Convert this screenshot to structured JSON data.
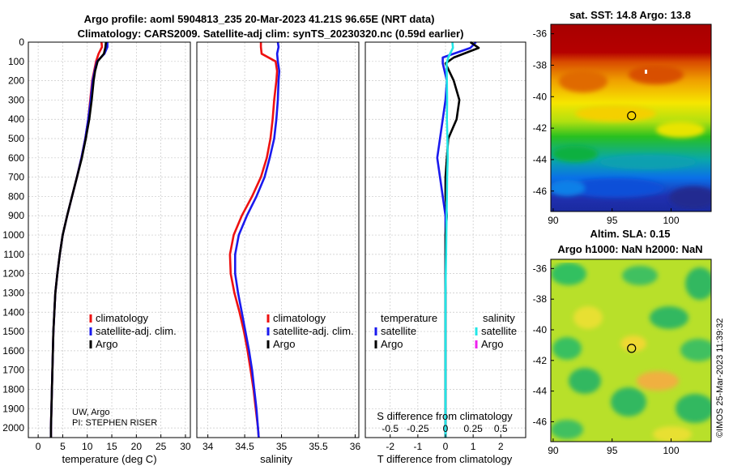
{
  "title": {
    "line1": "Argo profile: aoml 5904813_235 20-Mar-2023 41.21S 96.65E (NRT data)",
    "line2": "Climatology: CARS2009. Satellite-adj clim: synTS_20230320.nc (0.59d earlier)"
  },
  "colors": {
    "climatology": "#ee1111",
    "satellite": "#1a1aee",
    "argo": "#000000",
    "cyan": "#22e6e6",
    "magenta": "#ee22ee"
  },
  "depth_ticks": [
    0,
    100,
    200,
    300,
    400,
    500,
    600,
    700,
    800,
    900,
    1000,
    1100,
    1200,
    1300,
    1400,
    1500,
    1600,
    1700,
    1800,
    1900,
    2000
  ],
  "chart_data": [
    {
      "type": "line",
      "name": "temperature",
      "xlabel": "temperature (deg C)",
      "ylim": [
        0,
        2050
      ],
      "xlim": [
        -2,
        31
      ],
      "xticks": [
        0,
        5,
        10,
        15,
        20,
        25,
        30
      ],
      "series": [
        {
          "name": "climatology",
          "color": "#ee1111",
          "x": [
            12.9,
            13.0,
            12.3,
            11.8,
            11.4,
            11.0,
            10.6,
            10.2,
            9.6,
            8.8,
            7.9,
            6.9,
            5.9,
            5.0,
            4.4,
            3.9,
            3.5,
            3.3,
            3.1,
            3.0,
            2.9,
            2.8,
            2.7,
            2.6,
            2.6
          ],
          "y": [
            0,
            25,
            60,
            100,
            150,
            200,
            300,
            400,
            500,
            600,
            700,
            800,
            900,
            1000,
            1100,
            1200,
            1300,
            1400,
            1500,
            1600,
            1700,
            1800,
            1900,
            2000,
            2050
          ]
        },
        {
          "name": "satellite-adj. clim.",
          "color": "#1a1aee",
          "x": [
            14.1,
            14.1,
            13.5,
            12.0,
            11.5,
            11.1,
            10.7,
            10.2,
            9.6,
            8.8,
            7.9,
            6.9,
            5.9,
            5.0,
            4.4,
            3.9,
            3.5,
            3.3,
            3.1,
            3.0,
            2.9,
            2.8,
            2.7,
            2.6,
            2.6
          ],
          "y": [
            0,
            25,
            60,
            100,
            150,
            200,
            300,
            400,
            500,
            600,
            700,
            800,
            900,
            1000,
            1100,
            1200,
            1300,
            1400,
            1500,
            1600,
            1700,
            1800,
            1900,
            2000,
            2050
          ]
        },
        {
          "name": "Argo",
          "color": "#000000",
          "x": [
            13.8,
            13.7,
            13.4,
            12.1,
            11.6,
            11.3,
            10.9,
            10.4,
            9.7,
            8.9,
            7.9,
            6.9,
            5.9,
            5.0,
            4.4,
            3.9,
            3.5,
            3.3,
            3.1,
            3.0,
            2.9,
            2.8,
            2.7,
            2.6,
            2.6
          ],
          "y": [
            0,
            25,
            60,
            100,
            150,
            200,
            300,
            400,
            500,
            600,
            700,
            800,
            900,
            1000,
            1100,
            1200,
            1300,
            1400,
            1500,
            1600,
            1700,
            1800,
            1900,
            2000,
            2050
          ]
        }
      ],
      "legend": [
        "climatology",
        "satellite-adj. clim.",
        "Argo"
      ],
      "annotation": [
        "UW, Argo",
        "PI: STEPHEN RISER"
      ]
    },
    {
      "type": "line",
      "name": "salinity",
      "xlabel": "salinity",
      "ylim": [
        0,
        2050
      ],
      "xlim": [
        33.85,
        36.05
      ],
      "xticks": [
        34,
        34.5,
        35,
        35.5,
        36
      ],
      "xticklabels": [
        "34",
        "34.5",
        "35",
        "35.5",
        "36"
      ],
      "series": [
        {
          "name": "climatology",
          "color": "#ee1111",
          "x": [
            34.72,
            34.72,
            34.73,
            34.92,
            34.94,
            34.93,
            34.9,
            34.88,
            34.85,
            34.8,
            34.72,
            34.6,
            34.46,
            34.35,
            34.3,
            34.31,
            34.36,
            34.43,
            34.49,
            34.54,
            34.58,
            34.62,
            34.65,
            34.68,
            34.69
          ],
          "y": [
            0,
            25,
            60,
            100,
            150,
            200,
            300,
            400,
            500,
            600,
            700,
            800,
            900,
            1000,
            1100,
            1200,
            1300,
            1400,
            1500,
            1600,
            1700,
            1800,
            1900,
            2000,
            2050
          ]
        },
        {
          "name": "satellite-adj. clim.",
          "color": "#1a1aee",
          "x": [
            34.95,
            34.96,
            34.94,
            34.95,
            34.97,
            34.96,
            34.95,
            34.93,
            34.9,
            34.84,
            34.77,
            34.66,
            34.53,
            34.42,
            34.37,
            34.37,
            34.41,
            34.46,
            34.51,
            34.56,
            34.6,
            34.63,
            34.66,
            34.68,
            34.69
          ],
          "y": [
            0,
            25,
            60,
            100,
            150,
            200,
            300,
            400,
            500,
            600,
            700,
            800,
            900,
            1000,
            1100,
            1200,
            1300,
            1400,
            1500,
            1600,
            1700,
            1800,
            1900,
            2000,
            2050
          ]
        }
      ],
      "legend": [
        "climatology",
        "satellite-adj. clim.",
        "Argo"
      ]
    },
    {
      "type": "line",
      "name": "difference",
      "xlabel": "T difference from climatology",
      "xlabel_top": "S difference from climatology",
      "ylim": [
        0,
        2050
      ],
      "xlim": [
        -2.9,
        2.9
      ],
      "xticks": [
        -2,
        -1,
        0,
        1,
        2
      ],
      "s_ticks": [
        -0.5,
        -0.25,
        0,
        0.25,
        0.5
      ],
      "s_ticklabels": [
        "-0.5",
        "-0.25",
        "0",
        "0.25",
        "0.5"
      ],
      "series": [
        {
          "name": "temperature satellite",
          "color": "#1a1aee",
          "x": [
            1.1,
            0.9,
            -0.1,
            -0.1,
            0.05,
            0.0,
            -0.1,
            -0.2,
            -0.3,
            -0.2,
            -0.1,
            0.0,
            0.0,
            0.0,
            0.0,
            0.0,
            0.0,
            0.0,
            0.0,
            0.0,
            0.0,
            0.0,
            0.0
          ],
          "y": [
            0,
            30,
            80,
            110,
            200,
            300,
            400,
            500,
            600,
            700,
            800,
            900,
            1000,
            1100,
            1200,
            1300,
            1400,
            1500,
            1600,
            1700,
            1800,
            1900,
            2050
          ]
        },
        {
          "name": "temperature Argo",
          "color": "#000000",
          "x": [
            0.9,
            1.2,
            0.3,
            0.0,
            0.3,
            0.5,
            0.4,
            0.1,
            0.05,
            0.0,
            0.0,
            0.05,
            0.0,
            0.0,
            0.0,
            0.0,
            0.0,
            0.0,
            0.0,
            0.0,
            0.0,
            0.0,
            0.0
          ],
          "y": [
            0,
            30,
            80,
            110,
            200,
            300,
            400,
            500,
            600,
            700,
            800,
            900,
            1000,
            1100,
            1200,
            1300,
            1400,
            1500,
            1600,
            1700,
            1800,
            1900,
            2050
          ]
        },
        {
          "name": "salinity satellite",
          "color": "#22e6e6",
          "x": [
            0.25,
            0.27,
            0.1,
            0.04,
            0.05,
            0.06,
            0.05,
            0.07,
            0.08,
            0.06,
            0.05,
            0.04,
            0.03,
            0.02,
            0.01,
            0.0,
            0.0,
            0.0,
            0.0,
            0.0,
            0.0,
            0.0,
            0.0
          ],
          "y": [
            0,
            30,
            80,
            110,
            200,
            300,
            400,
            500,
            600,
            700,
            800,
            900,
            1000,
            1100,
            1200,
            1300,
            1400,
            1500,
            1600,
            1700,
            1800,
            1900,
            2050
          ]
        }
      ],
      "legend_temperature": {
        "title": "temperature",
        "items": [
          "satellite",
          "Argo"
        ]
      },
      "legend_salinity": {
        "title": "salinity",
        "items": [
          "satellite",
          "Argo"
        ]
      }
    },
    {
      "type": "heatmap",
      "name": "sst_map",
      "title": "sat. SST: 14.8 Argo: 13.8",
      "xlim": [
        89.8,
        103.4
      ],
      "ylim": [
        -47.3,
        -35.4
      ],
      "xticks": [
        90,
        95,
        100
      ],
      "yticks": [
        -36,
        -38,
        -40,
        -42,
        -44,
        -46
      ],
      "marker": {
        "lon": 96.65,
        "lat": -41.21
      }
    },
    {
      "type": "heatmap",
      "name": "sla_map",
      "title_line1": "Altim. SLA: 0.15",
      "title_line2": "Argo h1000: NaN h2000: NaN",
      "xlim": [
        89.8,
        103.4
      ],
      "ylim": [
        -47.3,
        -35.4
      ],
      "xticks": [
        90,
        95,
        100
      ],
      "yticks": [
        -36,
        -38,
        -40,
        -42,
        -44,
        -46
      ],
      "marker": {
        "lon": 96.65,
        "lat": -41.21
      }
    }
  ],
  "credit": "©IMOS 25-Mar-2023 11:39:32"
}
